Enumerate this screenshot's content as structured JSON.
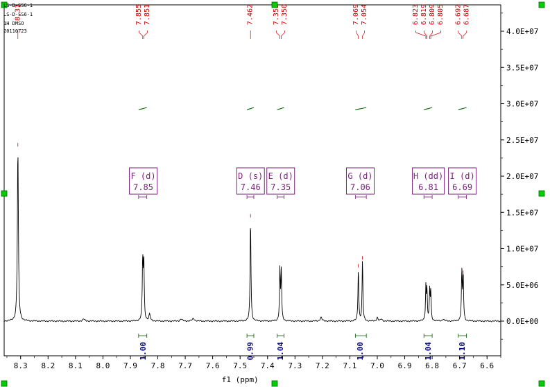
{
  "header": {
    "lines": [
      "LS-D-SS6-1",
      "LS-D-SS6-1",
      "1H DMSO",
      "20110723"
    ]
  },
  "chart_data": {
    "type": "line",
    "title": "",
    "xlabel": "f1 (ppm)",
    "ylabel": "",
    "xlim": [
      8.36,
      6.55
    ],
    "ylim": [
      -4000000,
      44000000
    ],
    "x_ticks": [
      "8.3",
      "8.2",
      "8.1",
      "8.0",
      "7.9",
      "7.8",
      "7.7",
      "7.6",
      "7.5",
      "7.4",
      "7.3",
      "7.2",
      "7.1",
      "7.0",
      "6.9",
      "6.8",
      "6.7",
      "6.6"
    ],
    "y_ticks": [
      "0.0E+00",
      "5.0E+06",
      "1.0E+07",
      "1.5E+07",
      "2.0E+07",
      "2.5E+07",
      "3.0E+07",
      "3.5E+07",
      "4.0E+07"
    ],
    "peaks": [
      {
        "ppm": 8.31,
        "height": 24000000,
        "width": 0.0022
      },
      {
        "ppm": 7.855,
        "height": 8300000,
        "width": 0.0018
      },
      {
        "ppm": 7.851,
        "height": 8000000,
        "width": 0.0018
      },
      {
        "ppm": 7.462,
        "height": 14200000,
        "width": 0.0018
      },
      {
        "ppm": 7.355,
        "height": 7000000,
        "width": 0.0017
      },
      {
        "ppm": 7.35,
        "height": 6800000,
        "width": 0.0017
      },
      {
        "ppm": 7.069,
        "height": 7300000,
        "width": 0.0017
      },
      {
        "ppm": 7.054,
        "height": 8400000,
        "width": 0.0017
      },
      {
        "ppm": 6.823,
        "height": 4700000,
        "width": 0.0016
      },
      {
        "ppm": 6.819,
        "height": 4200000,
        "width": 0.0016
      },
      {
        "ppm": 6.809,
        "height": 4200000,
        "width": 0.0016
      },
      {
        "ppm": 6.805,
        "height": 3900000,
        "width": 0.0016
      },
      {
        "ppm": 6.692,
        "height": 6800000,
        "width": 0.0017
      },
      {
        "ppm": 6.687,
        "height": 6400000,
        "width": 0.0017
      },
      {
        "ppm": 8.07,
        "height": 300000,
        "width": 0.004
      },
      {
        "ppm": 7.83,
        "height": 900000,
        "width": 0.003
      },
      {
        "ppm": 7.715,
        "height": 300000,
        "width": 0.004
      },
      {
        "ppm": 7.67,
        "height": 350000,
        "width": 0.005
      },
      {
        "ppm": 7.205,
        "height": 500000,
        "width": 0.004
      },
      {
        "ppm": 7.0,
        "height": 500000,
        "width": 0.003
      },
      {
        "ppm": 6.985,
        "height": 300000,
        "width": 0.003
      },
      {
        "ppm": 6.76,
        "height": 250000,
        "width": 0.004
      }
    ],
    "peak_labels": [
      {
        "values": [
          "8.31"
        ]
      },
      {
        "values": [
          "7.855",
          "7.851"
        ]
      },
      {
        "values": [
          "7.462"
        ]
      },
      {
        "values": [
          "7.355",
          "7.350"
        ]
      },
      {
        "values": [
          "7.069",
          "7.054"
        ]
      },
      {
        "values": [
          "6.823",
          "6.819",
          "6.809",
          "6.805"
        ]
      },
      {
        "values": [
          "6.692",
          "6.687"
        ]
      }
    ],
    "multiplets": [
      {
        "label": "F (d)",
        "shift": "7.85",
        "ppm": 7.853,
        "range": [
          7.87,
          7.84
        ]
      },
      {
        "label": "D (s)",
        "shift": "7.46",
        "ppm": 7.462,
        "range": [
          7.475,
          7.45
        ]
      },
      {
        "label": "E (d)",
        "shift": "7.35",
        "ppm": 7.352,
        "range": [
          7.365,
          7.34
        ]
      },
      {
        "label": "G (d)",
        "shift": "7.06",
        "ppm": 7.062,
        "range": [
          7.08,
          7.04
        ]
      },
      {
        "label": "H (dd)",
        "shift": "6.81",
        "ppm": 6.814,
        "range": [
          6.83,
          6.8
        ]
      },
      {
        "label": "I (d)",
        "shift": "6.69",
        "ppm": 6.69,
        "range": [
          6.705,
          6.675
        ]
      }
    ],
    "integrals": [
      {
        "value": "1.00",
        "ppm": 7.853,
        "range": [
          7.87,
          7.84
        ]
      },
      {
        "value": "0.99",
        "ppm": 7.462,
        "range": [
          7.475,
          7.45
        ]
      },
      {
        "value": "1.04",
        "ppm": 7.352,
        "range": [
          7.365,
          7.34
        ]
      },
      {
        "value": "1.00",
        "ppm": 7.062,
        "range": [
          7.08,
          7.04
        ]
      },
      {
        "value": "1.04",
        "ppm": 6.814,
        "range": [
          6.83,
          6.8
        ]
      },
      {
        "value": "1.10",
        "ppm": 6.69,
        "range": [
          6.705,
          6.675
        ]
      }
    ],
    "colors": {
      "spectrum": "#000000",
      "peak_label": "#cc0000",
      "multiplet": "#7a1f7a",
      "integral": "#006400",
      "integral_value": "#000080",
      "handle": "#00cc00",
      "frame": "#000000"
    }
  }
}
